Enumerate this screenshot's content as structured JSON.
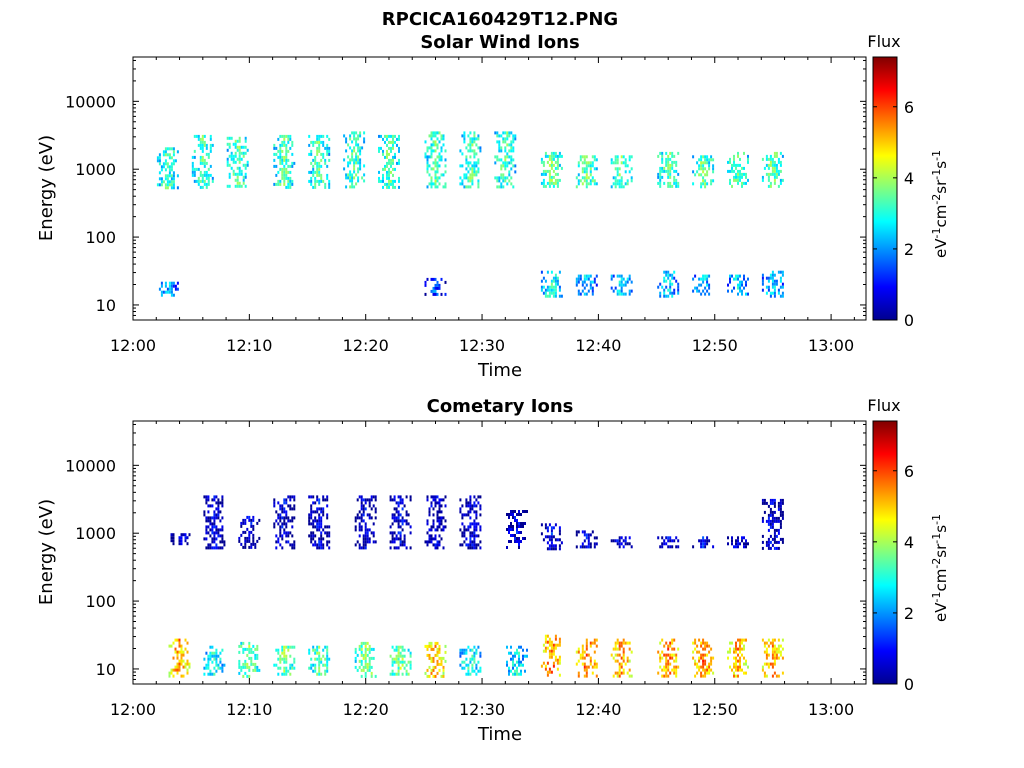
{
  "figure": {
    "suptitle": "RPCICA160429T12.PNG",
    "colormap": [
      "#00008f",
      "#0000ff",
      "#0080ff",
      "#00ffff",
      "#80ff80",
      "#ffff00",
      "#ff8000",
      "#ff0000",
      "#800000"
    ]
  },
  "chart_data": [
    {
      "type": "heatmap",
      "title": "Solar Wind Ions",
      "xlabel": "Time",
      "ylabel": "Energy (eV)",
      "x_range": [
        "12:00",
        "13:03"
      ],
      "x_ticks": [
        "12:00",
        "12:10",
        "12:20",
        "12:30",
        "12:40",
        "12:50",
        "13:00"
      ],
      "y_scale": "log",
      "y_range": [
        6,
        45000
      ],
      "y_ticks": [
        "10",
        "100",
        "1000",
        "10000"
      ],
      "colorbar": {
        "label": "Flux",
        "unit_label": "eV-1cm-2sr-1s-1",
        "range": [
          0,
          7.4
        ],
        "ticks": [
          "0",
          "2",
          "4",
          "6"
        ]
      },
      "sweeps": [
        {
          "time": "12:03",
          "groups": [
            {
              "e_low": 550,
              "e_high": 2100,
              "flux": 3.2
            },
            {
              "e_low": 14,
              "e_high": 22,
              "flux": 2.2
            }
          ]
        },
        {
          "time": "12:06",
          "groups": [
            {
              "e_low": 550,
              "e_high": 3200,
              "flux": 3.3
            }
          ]
        },
        {
          "time": "12:09",
          "groups": [
            {
              "e_low": 550,
              "e_high": 3000,
              "flux": 3.4
            }
          ]
        },
        {
          "time": "12:13",
          "groups": [
            {
              "e_low": 550,
              "e_high": 3200,
              "flux": 3.4
            }
          ]
        },
        {
          "time": "12:16",
          "groups": [
            {
              "e_low": 550,
              "e_high": 3200,
              "flux": 3.4
            }
          ]
        },
        {
          "time": "12:19",
          "groups": [
            {
              "e_low": 550,
              "e_high": 3600,
              "flux": 3.4
            }
          ]
        },
        {
          "time": "12:22",
          "groups": [
            {
              "e_low": 550,
              "e_high": 3200,
              "flux": 3.4
            }
          ]
        },
        {
          "time": "12:26",
          "groups": [
            {
              "e_low": 550,
              "e_high": 3600,
              "flux": 3.4
            },
            {
              "e_low": 14,
              "e_high": 25,
              "flux": 1.5
            }
          ]
        },
        {
          "time": "12:29",
          "groups": [
            {
              "e_low": 550,
              "e_high": 3600,
              "flux": 3.4
            }
          ]
        },
        {
          "time": "12:32",
          "groups": [
            {
              "e_low": 550,
              "e_high": 3600,
              "flux": 3.4
            }
          ]
        },
        {
          "time": "12:36",
          "groups": [
            {
              "e_low": 550,
              "e_high": 1800,
              "flux": 3.6
            },
            {
              "e_low": 14,
              "e_high": 32,
              "flux": 3.0
            }
          ]
        },
        {
          "time": "12:39",
          "groups": [
            {
              "e_low": 550,
              "e_high": 1600,
              "flux": 3.6
            },
            {
              "e_low": 14,
              "e_high": 28,
              "flux": 2.5
            }
          ]
        },
        {
          "time": "12:42",
          "groups": [
            {
              "e_low": 550,
              "e_high": 1600,
              "flux": 3.5
            },
            {
              "e_low": 14,
              "e_high": 28,
              "flux": 2.5
            }
          ]
        },
        {
          "time": "12:46",
          "groups": [
            {
              "e_low": 550,
              "e_high": 1800,
              "flux": 3.5
            },
            {
              "e_low": 14,
              "e_high": 32,
              "flux": 2.5
            }
          ]
        },
        {
          "time": "12:49",
          "groups": [
            {
              "e_low": 550,
              "e_high": 1600,
              "flux": 3.5
            },
            {
              "e_low": 14,
              "e_high": 28,
              "flux": 2.5
            }
          ]
        },
        {
          "time": "12:52",
          "groups": [
            {
              "e_low": 550,
              "e_high": 1800,
              "flux": 3.5
            },
            {
              "e_low": 14,
              "e_high": 28,
              "flux": 2.5
            }
          ]
        },
        {
          "time": "12:55",
          "groups": [
            {
              "e_low": 550,
              "e_high": 1800,
              "flux": 3.5
            },
            {
              "e_low": 14,
              "e_high": 32,
              "flux": 2.5
            }
          ]
        }
      ]
    },
    {
      "type": "heatmap",
      "title": "Cometary Ions",
      "xlabel": "Time",
      "ylabel": "Energy (eV)",
      "x_range": [
        "12:00",
        "13:03"
      ],
      "x_ticks": [
        "12:00",
        "12:10",
        "12:20",
        "12:30",
        "12:40",
        "12:50",
        "13:00"
      ],
      "y_scale": "log",
      "y_range": [
        6,
        45000
      ],
      "y_ticks": [
        "10",
        "100",
        "1000",
        "10000"
      ],
      "colorbar": {
        "label": "Flux",
        "unit_label": "eV-1cm-2sr-1s-1",
        "range": [
          0,
          7.4
        ],
        "ticks": [
          "0",
          "2",
          "4",
          "6"
        ]
      },
      "sweeps": [
        {
          "time": "12:04",
          "groups": [
            {
              "e_low": 8,
              "e_high": 28,
              "flux": 5.4
            },
            {
              "e_low": 700,
              "e_high": 1000,
              "flux": 0.8
            }
          ]
        },
        {
          "time": "12:07",
          "groups": [
            {
              "e_low": 8,
              "e_high": 22,
              "flux": 3.0
            },
            {
              "e_low": 600,
              "e_high": 3600,
              "flux": 0.7
            }
          ]
        },
        {
          "time": "12:10",
          "groups": [
            {
              "e_low": 8,
              "e_high": 25,
              "flux": 3.6
            },
            {
              "e_low": 600,
              "e_high": 1800,
              "flux": 0.7
            }
          ]
        },
        {
          "time": "12:13",
          "groups": [
            {
              "e_low": 8,
              "e_high": 22,
              "flux": 3.6
            },
            {
              "e_low": 600,
              "e_high": 3600,
              "flux": 0.7
            }
          ]
        },
        {
          "time": "12:16",
          "groups": [
            {
              "e_low": 8,
              "e_high": 22,
              "flux": 3.5
            },
            {
              "e_low": 600,
              "e_high": 3600,
              "flux": 0.7
            }
          ]
        },
        {
          "time": "12:20",
          "groups": [
            {
              "e_low": 8,
              "e_high": 25,
              "flux": 3.8
            },
            {
              "e_low": 600,
              "e_high": 3600,
              "flux": 0.7
            }
          ]
        },
        {
          "time": "12:23",
          "groups": [
            {
              "e_low": 8,
              "e_high": 22,
              "flux": 3.8
            },
            {
              "e_low": 600,
              "e_high": 3600,
              "flux": 0.7
            }
          ]
        },
        {
          "time": "12:26",
          "groups": [
            {
              "e_low": 8,
              "e_high": 25,
              "flux": 5.2
            },
            {
              "e_low": 600,
              "e_high": 3600,
              "flux": 0.7
            }
          ]
        },
        {
          "time": "12:29",
          "groups": [
            {
              "e_low": 8,
              "e_high": 22,
              "flux": 3.0
            },
            {
              "e_low": 600,
              "e_high": 3600,
              "flux": 0.7
            }
          ]
        },
        {
          "time": "12:33",
          "groups": [
            {
              "e_low": 8,
              "e_high": 22,
              "flux": 2.8
            },
            {
              "e_low": 600,
              "e_high": 2200,
              "flux": 0.7
            }
          ]
        },
        {
          "time": "12:36",
          "groups": [
            {
              "e_low": 8,
              "e_high": 32,
              "flux": 5.6
            },
            {
              "e_low": 600,
              "e_high": 1400,
              "flux": 0.8
            }
          ]
        },
        {
          "time": "12:39",
          "groups": [
            {
              "e_low": 8,
              "e_high": 28,
              "flux": 5.8
            },
            {
              "e_low": 600,
              "e_high": 1100,
              "flux": 0.8
            }
          ]
        },
        {
          "time": "12:42",
          "groups": [
            {
              "e_low": 8,
              "e_high": 28,
              "flux": 5.4
            },
            {
              "e_low": 600,
              "e_high": 900,
              "flux": 0.8
            }
          ]
        },
        {
          "time": "12:46",
          "groups": [
            {
              "e_low": 8,
              "e_high": 28,
              "flux": 5.6
            },
            {
              "e_low": 600,
              "e_high": 900,
              "flux": 0.8
            }
          ]
        },
        {
          "time": "12:49",
          "groups": [
            {
              "e_low": 8,
              "e_high": 28,
              "flux": 5.6
            },
            {
              "e_low": 600,
              "e_high": 900,
              "flux": 0.8
            }
          ]
        },
        {
          "time": "12:52",
          "groups": [
            {
              "e_low": 8,
              "e_high": 28,
              "flux": 5.3
            },
            {
              "e_low": 600,
              "e_high": 900,
              "flux": 0.6
            }
          ]
        },
        {
          "time": "12:55",
          "groups": [
            {
              "e_low": 8,
              "e_high": 28,
              "flux": 5.4
            },
            {
              "e_low": 600,
              "e_high": 3200,
              "flux": 0.7
            }
          ]
        }
      ]
    }
  ]
}
